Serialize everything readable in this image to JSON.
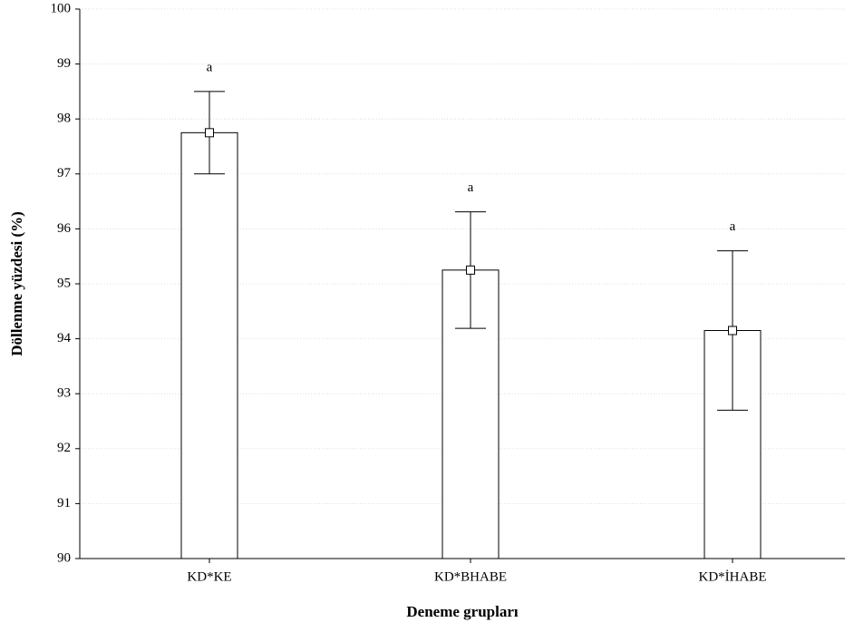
{
  "chart_data": {
    "type": "bar",
    "x_label": "Deneme grupları",
    "y_label": "Döllenme yüzdesi (%)",
    "categories": [
      "KD*KE",
      "KD*BHABE",
      "KD*İHABE"
    ],
    "values": [
      97.75,
      95.25,
      94.15
    ],
    "errors": [
      0.75,
      1.06,
      1.45
    ],
    "annotations": [
      "a",
      "a",
      "a"
    ],
    "color": "#ffffff",
    "ylim": [
      90,
      100
    ],
    "yticks": [
      90,
      91,
      92,
      93,
      94,
      95,
      96,
      97,
      98,
      99,
      100
    ],
    "grid": true
  }
}
